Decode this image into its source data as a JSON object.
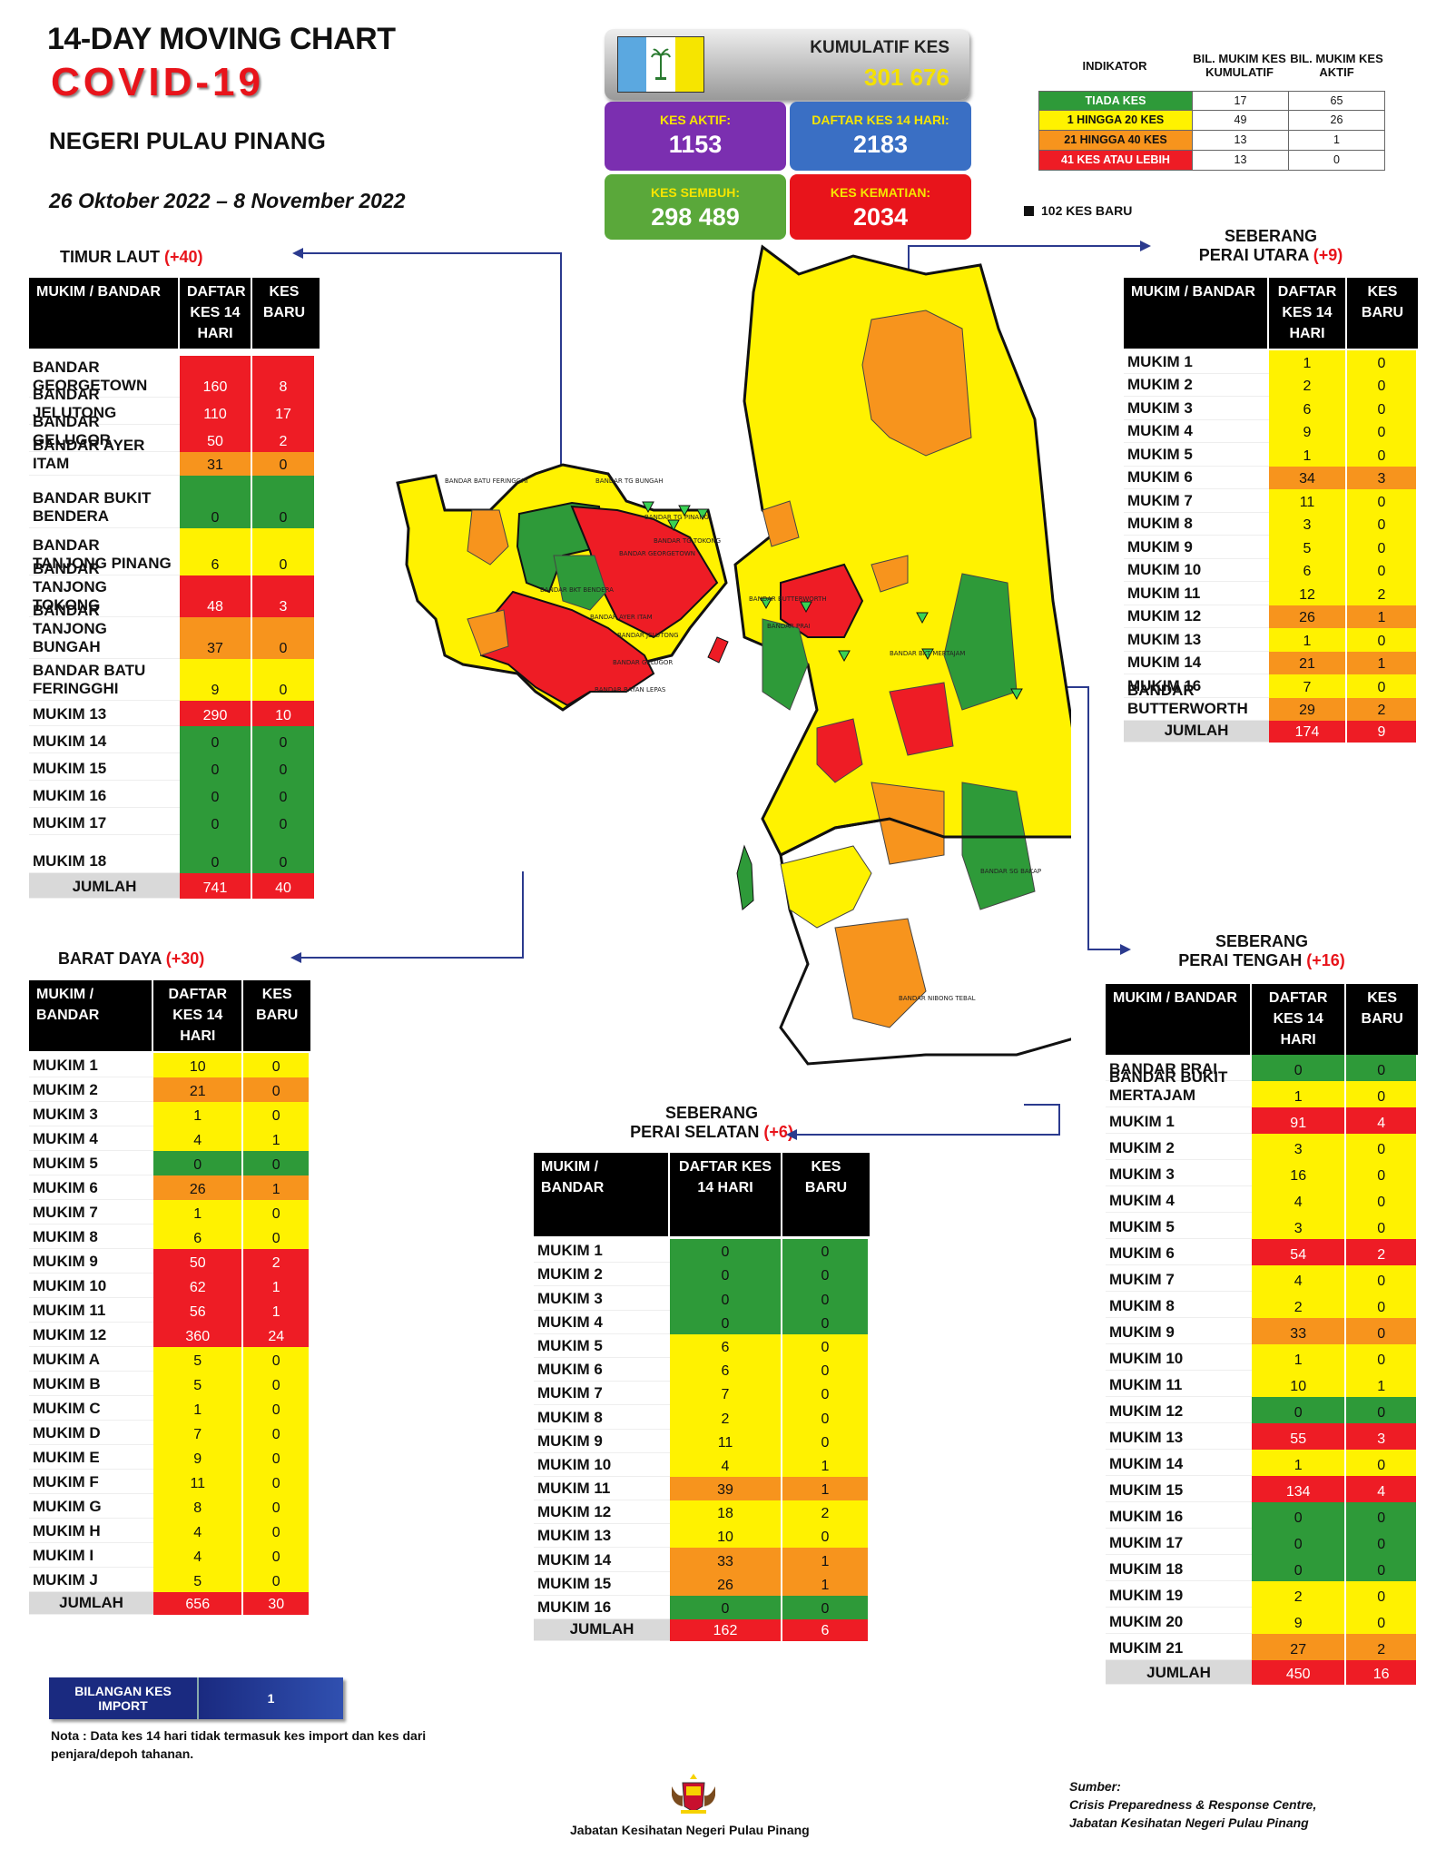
{
  "header": {
    "title": "14-DAY MOVING CHART",
    "subtitle": "COVID-19",
    "state": "NEGERI PULAU PINANG",
    "period": "26 Oktober 2022 – 8 November 2022"
  },
  "summary": {
    "kumulatif_label": "KUMULATIF KES",
    "kumulatif_value": "301 676",
    "aktif_label": "KES AKTIF:",
    "aktif_value": "1153",
    "daftar_label": "DAFTAR KES 14 HARI:",
    "daftar_value": "2183",
    "sembuh_label": "KES SEMBUH:",
    "sembuh_value": "298 489",
    "kematian_label": "KES KEMATIAN:",
    "kematian_value": "2034",
    "colors": {
      "aktif": "#7b2fb0",
      "daftar": "#3a6fc4",
      "sembuh": "#5aa83a",
      "kematian": "#e8141b",
      "flag_blue": "#5ba8e0",
      "flag_white": "#ffffff",
      "flag_yellow": "#f6e500"
    }
  },
  "indicator": {
    "h0": "INDIKATOR",
    "h1": "BIL. MUKIM KES KUMULATIF",
    "h2": "BIL. MUKIM KES AKTIF",
    "rows": [
      {
        "label": "TIADA KES",
        "c": "#2e9a39",
        "fg": "#fff",
        "a": "17",
        "b": "65"
      },
      {
        "label": "1 HINGGA 20 KES",
        "c": "#fff200",
        "fg": "#111",
        "a": "49",
        "b": "26"
      },
      {
        "label": "21 HINGGA 40 KES",
        "c": "#f7941d",
        "fg": "#111",
        "a": "13",
        "b": "1"
      },
      {
        "label": "41 KES ATAU LEBIH",
        "c": "#ee1c25",
        "fg": "#fff",
        "a": "13",
        "b": "0"
      }
    ],
    "new_cases": "102 KES BARU"
  },
  "col_headers": {
    "name": "MUKIM / BANDAR",
    "daftar": "DAFTAR KES 14 HARI",
    "daftar2": "DAFTAR KES 14 HARI",
    "baru": "KES BARU"
  },
  "timur_laut": {
    "name": "TIMUR LAUT",
    "delta": "(+40)",
    "rows": [
      [
        "BANDAR GEORGETOWN",
        "160",
        "8",
        "r",
        "r",
        46
      ],
      [
        "BANDAR JELUTONG",
        "110",
        "17",
        "r",
        "r",
        30
      ],
      [
        "BANDAR GELUGOR",
        "50",
        "2",
        "r",
        "r",
        30
      ],
      [
        "BANDAR AYER ITAM",
        "31",
        "0",
        "o",
        "o",
        26
      ],
      [
        "BANDAR BUKIT BENDERA",
        "0",
        "0",
        "g",
        "g",
        58
      ],
      [
        "BANDAR TANJONG PINANG",
        "6",
        "0",
        "y",
        "y",
        52
      ],
      [
        "BANDAR TANJONG TOKONG",
        "48",
        "3",
        "r",
        "r",
        46
      ],
      [
        "BANDAR TANJONG BUNGAH",
        "37",
        "0",
        "o",
        "o",
        46
      ],
      [
        "BANDAR BATU FERINGGHI",
        "9",
        "0",
        "y",
        "y",
        46
      ],
      [
        "MUKIM 13",
        "290",
        "10",
        "r",
        "r",
        28
      ],
      [
        "MUKIM 14",
        "0",
        "0",
        "g",
        "g",
        30
      ],
      [
        "MUKIM 15",
        "0",
        "0",
        "g",
        "g",
        30
      ],
      [
        "MUKIM 16",
        "0",
        "0",
        "g",
        "g",
        30
      ],
      [
        "MUKIM 17",
        "0",
        "0",
        "g",
        "g",
        30
      ],
      [
        "MUKIM 18",
        "0",
        "0",
        "g",
        "g",
        42
      ]
    ],
    "total": [
      "JUMLAH",
      "741",
      "40"
    ]
  },
  "barat_daya": {
    "name": "BARAT DAYA",
    "delta": "(+30)",
    "rows": [
      [
        "MUKIM 1",
        "10",
        "0",
        "y",
        "y"
      ],
      [
        "MUKIM 2",
        "21",
        "0",
        "o",
        "o"
      ],
      [
        "MUKIM 3",
        "1",
        "0",
        "y",
        "y"
      ],
      [
        "MUKIM 4",
        "4",
        "1",
        "y",
        "y"
      ],
      [
        "MUKIM 5",
        "0",
        "0",
        "g",
        "g"
      ],
      [
        "MUKIM 6",
        "26",
        "1",
        "o",
        "o"
      ],
      [
        "MUKIM 7",
        "1",
        "0",
        "y",
        "y"
      ],
      [
        "MUKIM 8",
        "6",
        "0",
        "y",
        "y"
      ],
      [
        "MUKIM 9",
        "50",
        "2",
        "r",
        "r"
      ],
      [
        "MUKIM 10",
        "62",
        "1",
        "r",
        "r"
      ],
      [
        "MUKIM 11",
        "56",
        "1",
        "r",
        "r"
      ],
      [
        "MUKIM 12",
        "360",
        "24",
        "r",
        "r"
      ],
      [
        "MUKIM A",
        "5",
        "0",
        "y",
        "y"
      ],
      [
        "MUKIM B",
        "5",
        "0",
        "y",
        "y"
      ],
      [
        "MUKIM C",
        "1",
        "0",
        "y",
        "y"
      ],
      [
        "MUKIM D",
        "7",
        "0",
        "y",
        "y"
      ],
      [
        "MUKIM E",
        "9",
        "0",
        "y",
        "y"
      ],
      [
        "MUKIM F",
        "11",
        "0",
        "y",
        "y"
      ],
      [
        "MUKIM G",
        "8",
        "0",
        "y",
        "y"
      ],
      [
        "MUKIM H",
        "4",
        "0",
        "y",
        "y"
      ],
      [
        "MUKIM I",
        "4",
        "0",
        "y",
        "y"
      ],
      [
        "MUKIM J",
        "5",
        "0",
        "y",
        "y"
      ]
    ],
    "total": [
      "JUMLAH",
      "656",
      "30"
    ]
  },
  "spu": {
    "name1": "SEBERANG",
    "name2": "PERAI UTARA",
    "delta": "(+9)",
    "rows": [
      [
        "MUKIM 1",
        "1",
        "0",
        "y",
        "y"
      ],
      [
        "MUKIM 2",
        "2",
        "0",
        "y",
        "y"
      ],
      [
        "MUKIM 3",
        "6",
        "0",
        "y",
        "y"
      ],
      [
        "MUKIM 4",
        "9",
        "0",
        "y",
        "y"
      ],
      [
        "MUKIM 5",
        "1",
        "0",
        "y",
        "y"
      ],
      [
        "MUKIM 6",
        "34",
        "3",
        "o",
        "o"
      ],
      [
        "MUKIM 7",
        "11",
        "0",
        "y",
        "y"
      ],
      [
        "MUKIM 8",
        "3",
        "0",
        "y",
        "y"
      ],
      [
        "MUKIM 9",
        "5",
        "0",
        "y",
        "y"
      ],
      [
        "MUKIM 10",
        "6",
        "0",
        "y",
        "y"
      ],
      [
        "MUKIM 11",
        "12",
        "2",
        "y",
        "y"
      ],
      [
        "MUKIM 12",
        "26",
        "1",
        "o",
        "o"
      ],
      [
        "MUKIM 13",
        "1",
        "0",
        "y",
        "y"
      ],
      [
        "MUKIM 14",
        "21",
        "1",
        "o",
        "o"
      ],
      [
        "MUKIM 16",
        "7",
        "0",
        "y",
        "y"
      ],
      [
        "BANDAR BUTTERWORTH",
        "29",
        "2",
        "o",
        "o"
      ]
    ],
    "total": [
      "JUMLAH",
      "174",
      "9"
    ]
  },
  "spt": {
    "name1": "SEBERANG",
    "name2": "PERAI TENGAH",
    "delta": "(+16)",
    "rows": [
      [
        "BANDAR PRAI",
        "0",
        "0",
        "g",
        "g"
      ],
      [
        "BANDAR BUKIT MERTAJAM",
        "1",
        "0",
        "y",
        "y"
      ],
      [
        "MUKIM 1",
        "91",
        "4",
        "r",
        "r"
      ],
      [
        "MUKIM 2",
        "3",
        "0",
        "y",
        "y"
      ],
      [
        "MUKIM 3",
        "16",
        "0",
        "y",
        "y"
      ],
      [
        "MUKIM 4",
        "4",
        "0",
        "y",
        "y"
      ],
      [
        "MUKIM 5",
        "3",
        "0",
        "y",
        "y"
      ],
      [
        "MUKIM 6",
        "54",
        "2",
        "r",
        "r"
      ],
      [
        "MUKIM 7",
        "4",
        "0",
        "y",
        "y"
      ],
      [
        "MUKIM 8",
        "2",
        "0",
        "y",
        "y"
      ],
      [
        "MUKIM 9",
        "33",
        "0",
        "o",
        "o"
      ],
      [
        "MUKIM 10",
        "1",
        "0",
        "y",
        "y"
      ],
      [
        "MUKIM 11",
        "10",
        "1",
        "y",
        "y"
      ],
      [
        "MUKIM 12",
        "0",
        "0",
        "g",
        "g"
      ],
      [
        "MUKIM 13",
        "55",
        "3",
        "r",
        "r"
      ],
      [
        "MUKIM 14",
        "1",
        "0",
        "y",
        "y"
      ],
      [
        "MUKIM 15",
        "134",
        "4",
        "r",
        "r"
      ],
      [
        "MUKIM 16",
        "0",
        "0",
        "g",
        "g"
      ],
      [
        "MUKIM 17",
        "0",
        "0",
        "g",
        "g"
      ],
      [
        "MUKIM 18",
        "0",
        "0",
        "g",
        "g"
      ],
      [
        "MUKIM 19",
        "2",
        "0",
        "y",
        "y"
      ],
      [
        "MUKIM 20",
        "9",
        "0",
        "y",
        "y"
      ],
      [
        "MUKIM 21",
        "27",
        "2",
        "o",
        "o"
      ]
    ],
    "total": [
      "JUMLAH",
      "450",
      "16"
    ]
  },
  "sps": {
    "name1": "SEBERANG",
    "name2": "PERAI SELATAN",
    "delta": "(+6)",
    "rows": [
      [
        "MUKIM 1",
        "0",
        "0",
        "g",
        "g"
      ],
      [
        "MUKIM 2",
        "0",
        "0",
        "g",
        "g"
      ],
      [
        "MUKIM 3",
        "0",
        "0",
        "g",
        "g"
      ],
      [
        "MUKIM 4",
        "0",
        "0",
        "g",
        "g"
      ],
      [
        "MUKIM 5",
        "6",
        "0",
        "y",
        "y"
      ],
      [
        "MUKIM 6",
        "6",
        "0",
        "y",
        "y"
      ],
      [
        "MUKIM 7",
        "7",
        "0",
        "y",
        "y"
      ],
      [
        "MUKIM 8",
        "2",
        "0",
        "y",
        "y"
      ],
      [
        "MUKIM 9",
        "11",
        "0",
        "y",
        "y"
      ],
      [
        "MUKIM 10",
        "4",
        "1",
        "y",
        "y"
      ],
      [
        "MUKIM 11",
        "39",
        "1",
        "o",
        "o"
      ],
      [
        "MUKIM 12",
        "18",
        "2",
        "y",
        "y"
      ],
      [
        "MUKIM 13",
        "10",
        "0",
        "y",
        "y"
      ],
      [
        "MUKIM 14",
        "33",
        "1",
        "o",
        "o"
      ],
      [
        "MUKIM 15",
        "26",
        "1",
        "o",
        "o"
      ],
      [
        "MUKIM 16",
        "0",
        "0",
        "g",
        "g"
      ]
    ],
    "total": [
      "JUMLAH",
      "162",
      "6"
    ]
  },
  "import": {
    "label": "BILANGAN KES IMPORT",
    "value": "1"
  },
  "note": "Nota : Data kes 14 hari tidak termasuk kes import dan kes dari penjara/depoh tahanan.",
  "source": {
    "l1": "Sumber:",
    "l2": "Crisis Preparedness & Response Centre,",
    "l3": "Jabatan Kesihatan Negeri Pulau Pinang"
  },
  "footer": "Jabatan Kesihatan Negeri Pulau Pinang",
  "map_labels": [
    "BANDAR BATU FERINGGHI",
    "BANDAR TG BUNGAH",
    "BANDAR TG PINANG",
    "BANDAR TG TOKONG",
    "BANDAR GEORGETOWN",
    "BANDAR BKT BENDERA",
    "BANDAR AYER ITAM",
    "BANDAR JELUTONG",
    "BANDAR GELUGOR",
    "BANDAR BAYAN LEPAS",
    "BANDAR BUTTERWORTH",
    "BANDAR PRAI",
    "BANDAR BKT MERTAJAM",
    "BANDAR SG BAKAP",
    "BANDAR NIBONG TEBAL"
  ]
}
